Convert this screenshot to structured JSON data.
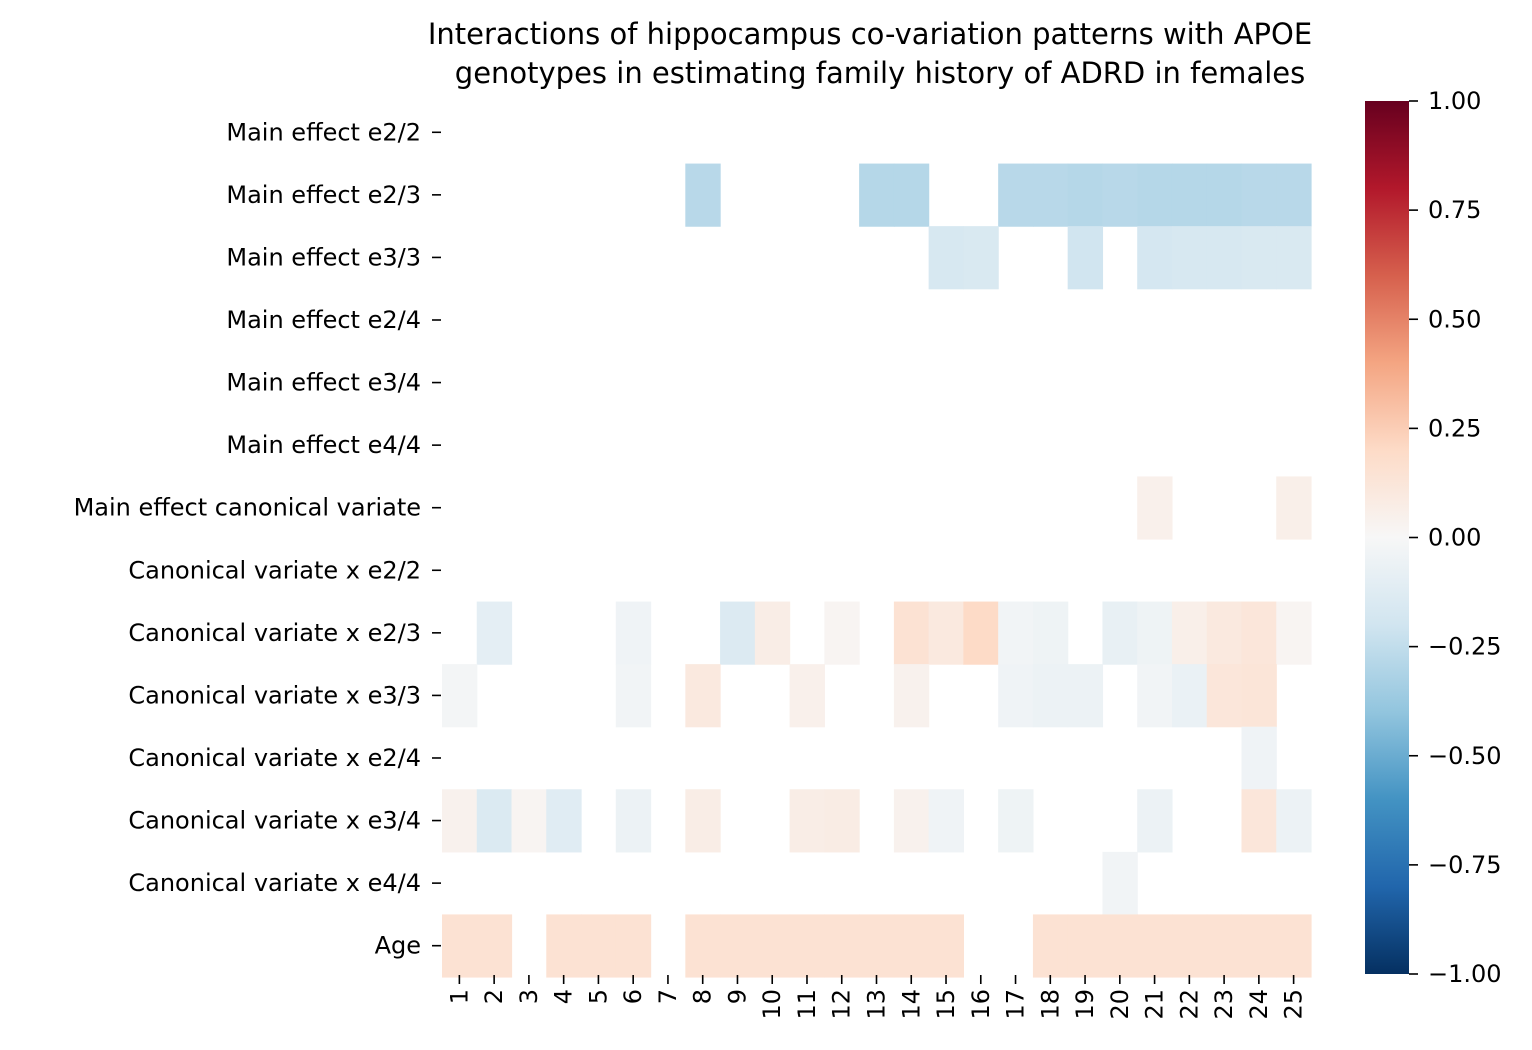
{
  "chart_data": {
    "type": "heatmap",
    "title_line1": "Interactions of hippocampus co-variation patterns with APOE",
    "title_line2": "genotypes in estimating family history of ADRD in females",
    "xlabel": "",
    "ylabel": "",
    "x": [
      "1",
      "2",
      "3",
      "4",
      "5",
      "6",
      "7",
      "8",
      "9",
      "10",
      "11",
      "12",
      "13",
      "14",
      "15",
      "16",
      "17",
      "18",
      "19",
      "20",
      "21",
      "22",
      "23",
      "24",
      "25"
    ],
    "y": [
      "Main effect e2/2",
      "Main effect e2/3",
      "Main effect e3/3",
      "Main effect e2/4",
      "Main effect e3/4",
      "Main effect e4/4",
      "Main effect canonical variate",
      "Canonical variate x e2/2",
      "Canonical variate x e2/3",
      "Canonical variate x e3/3",
      "Canonical variate x e2/4",
      "Canonical variate x e3/4",
      "Canonical variate x e4/4",
      "Age"
    ],
    "values": [
      [
        null,
        null,
        null,
        null,
        null,
        null,
        null,
        null,
        null,
        null,
        null,
        null,
        null,
        null,
        null,
        null,
        null,
        null,
        null,
        null,
        null,
        null,
        null,
        null,
        null
      ],
      [
        null,
        null,
        null,
        null,
        null,
        null,
        null,
        -0.28,
        null,
        null,
        null,
        null,
        -0.29,
        -0.29,
        null,
        null,
        -0.28,
        -0.28,
        -0.29,
        -0.28,
        -0.29,
        -0.29,
        -0.29,
        -0.28,
        -0.28
      ],
      [
        null,
        null,
        null,
        null,
        null,
        null,
        null,
        null,
        null,
        null,
        null,
        null,
        null,
        null,
        -0.17,
        -0.16,
        null,
        null,
        -0.2,
        null,
        -0.18,
        -0.17,
        -0.17,
        -0.16,
        -0.16
      ],
      [
        null,
        null,
        null,
        null,
        null,
        null,
        null,
        null,
        null,
        null,
        null,
        null,
        null,
        null,
        null,
        null,
        null,
        null,
        null,
        null,
        null,
        null,
        null,
        null,
        null
      ],
      [
        null,
        null,
        null,
        null,
        null,
        null,
        null,
        null,
        null,
        null,
        null,
        null,
        null,
        null,
        null,
        null,
        null,
        null,
        null,
        null,
        null,
        null,
        null,
        null,
        null
      ],
      [
        null,
        null,
        null,
        null,
        null,
        null,
        null,
        null,
        null,
        null,
        null,
        null,
        null,
        null,
        null,
        null,
        null,
        null,
        null,
        null,
        null,
        null,
        null,
        null,
        null
      ],
      [
        null,
        null,
        null,
        null,
        null,
        null,
        null,
        null,
        null,
        null,
        null,
        null,
        null,
        null,
        null,
        null,
        null,
        null,
        null,
        null,
        0.05,
        null,
        null,
        null,
        0.06
      ],
      [
        null,
        null,
        null,
        null,
        null,
        null,
        null,
        null,
        null,
        null,
        null,
        null,
        null,
        null,
        null,
        null,
        null,
        null,
        null,
        null,
        null,
        null,
        null,
        null,
        null
      ],
      [
        null,
        -0.1,
        null,
        null,
        null,
        -0.04,
        null,
        null,
        -0.14,
        0.07,
        null,
        0.02,
        null,
        0.15,
        0.1,
        0.2,
        -0.03,
        -0.05,
        null,
        -0.08,
        -0.05,
        0.06,
        0.1,
        0.12,
        0.02
      ],
      [
        -0.02,
        null,
        null,
        null,
        null,
        -0.03,
        null,
        0.1,
        null,
        null,
        0.05,
        null,
        null,
        0.04,
        null,
        null,
        -0.04,
        -0.06,
        -0.06,
        null,
        -0.03,
        -0.07,
        0.12,
        0.13,
        null
      ],
      [
        null,
        null,
        null,
        null,
        null,
        null,
        null,
        null,
        null,
        null,
        null,
        null,
        null,
        null,
        null,
        null,
        null,
        null,
        null,
        null,
        null,
        null,
        null,
        -0.04,
        null
      ],
      [
        0.04,
        -0.15,
        0.02,
        -0.12,
        null,
        -0.06,
        null,
        0.07,
        null,
        null,
        0.07,
        0.08,
        null,
        0.04,
        -0.04,
        null,
        -0.05,
        null,
        null,
        null,
        -0.06,
        null,
        null,
        0.12,
        -0.06
      ],
      [
        null,
        null,
        null,
        null,
        null,
        null,
        null,
        null,
        null,
        null,
        null,
        null,
        null,
        null,
        null,
        null,
        null,
        null,
        null,
        -0.03,
        null,
        null,
        null,
        null,
        null
      ],
      [
        0.15,
        0.15,
        null,
        0.15,
        0.15,
        0.15,
        null,
        0.15,
        0.15,
        0.15,
        0.15,
        0.15,
        0.15,
        0.15,
        0.15,
        null,
        null,
        0.15,
        0.15,
        0.15,
        0.15,
        0.15,
        0.15,
        0.15,
        0.15
      ]
    ],
    "colorbar": {
      "colormap": "RdBu_r",
      "vmin": -1.0,
      "vmax": 1.0,
      "ticks": [
        "1.00",
        "0.75",
        "0.50",
        "0.25",
        "0.00",
        "−0.25",
        "−0.50",
        "−0.75",
        "−1.00"
      ]
    },
    "grid": false,
    "legend": "colorbar-right"
  }
}
